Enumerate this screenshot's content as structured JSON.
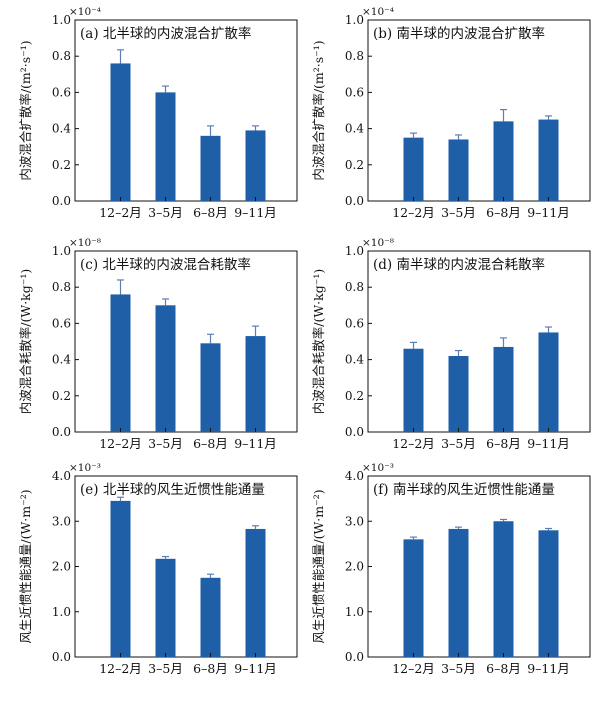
{
  "chart_data": [
    {
      "type": "bar",
      "panel": "a",
      "title": "(a) 北半球的内波混合扩散率",
      "ylabel": "内波混合扩散率/(m²·s⁻¹)",
      "multiplier": "×10⁻⁴",
      "categories": [
        "12–2月",
        "3–5月",
        "6–8月",
        "9–11月"
      ],
      "values": [
        0.76,
        0.6,
        0.36,
        0.39
      ],
      "errors": [
        0.075,
        0.035,
        0.055,
        0.025
      ],
      "ylim": [
        0,
        1.0
      ],
      "yticks": [
        "0.0",
        "0.2",
        "0.4",
        "0.6",
        "0.8",
        "1.0"
      ]
    },
    {
      "type": "bar",
      "panel": "b",
      "title": "(b) 南半球的内波混合扩散率",
      "ylabel": "内波混合扩散率/(m²·s⁻¹)",
      "multiplier": "×10⁻⁴",
      "categories": [
        "12–2月",
        "3–5月",
        "6–8月",
        "9–11月"
      ],
      "values": [
        0.35,
        0.34,
        0.44,
        0.45
      ],
      "errors": [
        0.025,
        0.025,
        0.065,
        0.02
      ],
      "ylim": [
        0,
        1.0
      ],
      "yticks": [
        "0.0",
        "0.2",
        "0.4",
        "0.6",
        "0.8",
        "1.0"
      ]
    },
    {
      "type": "bar",
      "panel": "c",
      "title": "(c) 北半球的内波混合耗散率",
      "ylabel": "内波混合耗散率/(W·kg⁻¹)",
      "multiplier": "×10⁻⁸",
      "categories": [
        "12–2月",
        "3–5月",
        "6–8月",
        "9–11月"
      ],
      "values": [
        0.76,
        0.7,
        0.49,
        0.53
      ],
      "errors": [
        0.08,
        0.035,
        0.05,
        0.055
      ],
      "ylim": [
        0,
        1.0
      ],
      "yticks": [
        "0.0",
        "0.2",
        "0.4",
        "0.6",
        "0.8",
        "1.0"
      ]
    },
    {
      "type": "bar",
      "panel": "d",
      "title": "(d) 南半球的内波混合耗散率",
      "ylabel": "内波混合耗散率/(W·kg⁻¹)",
      "multiplier": "×10⁻⁸",
      "categories": [
        "12–2月",
        "3–5月",
        "6–8月",
        "9–11月"
      ],
      "values": [
        0.46,
        0.42,
        0.47,
        0.55
      ],
      "errors": [
        0.035,
        0.03,
        0.05,
        0.03
      ],
      "ylim": [
        0,
        1.0
      ],
      "yticks": [
        "0.0",
        "0.2",
        "0.4",
        "0.6",
        "0.8",
        "1.0"
      ]
    },
    {
      "type": "bar",
      "panel": "e",
      "title": "(e) 北半球的风生近惯性能通量",
      "ylabel": "风生近惯性能通量/(W·m⁻²)",
      "multiplier": "×10⁻³",
      "categories": [
        "12–2月",
        "3–5月",
        "6–8月",
        "9–11月"
      ],
      "values": [
        3.45,
        2.17,
        1.75,
        2.83
      ],
      "errors": [
        0.08,
        0.05,
        0.08,
        0.07
      ],
      "ylim": [
        0,
        4.0
      ],
      "yticks": [
        "0.0",
        "1.0",
        "2.0",
        "3.0",
        "4.0"
      ]
    },
    {
      "type": "bar",
      "panel": "f",
      "title": "(f) 南半球的风生近惯性能通量",
      "ylabel": "风生近惯性能通量/(W·m⁻²)",
      "multiplier": "×10⁻³",
      "categories": [
        "12–2月",
        "3–5月",
        "6–8月",
        "9–11月"
      ],
      "values": [
        2.6,
        2.83,
        3.0,
        2.8
      ],
      "errors": [
        0.05,
        0.04,
        0.04,
        0.04
      ],
      "ylim": [
        0,
        4.0
      ],
      "yticks": [
        "0.0",
        "1.0",
        "2.0",
        "3.0",
        "4.0"
      ]
    }
  ],
  "colors": {
    "bar": "#1f5fa8",
    "error_bar": "#5b7fb5",
    "axis": "#111111"
  }
}
